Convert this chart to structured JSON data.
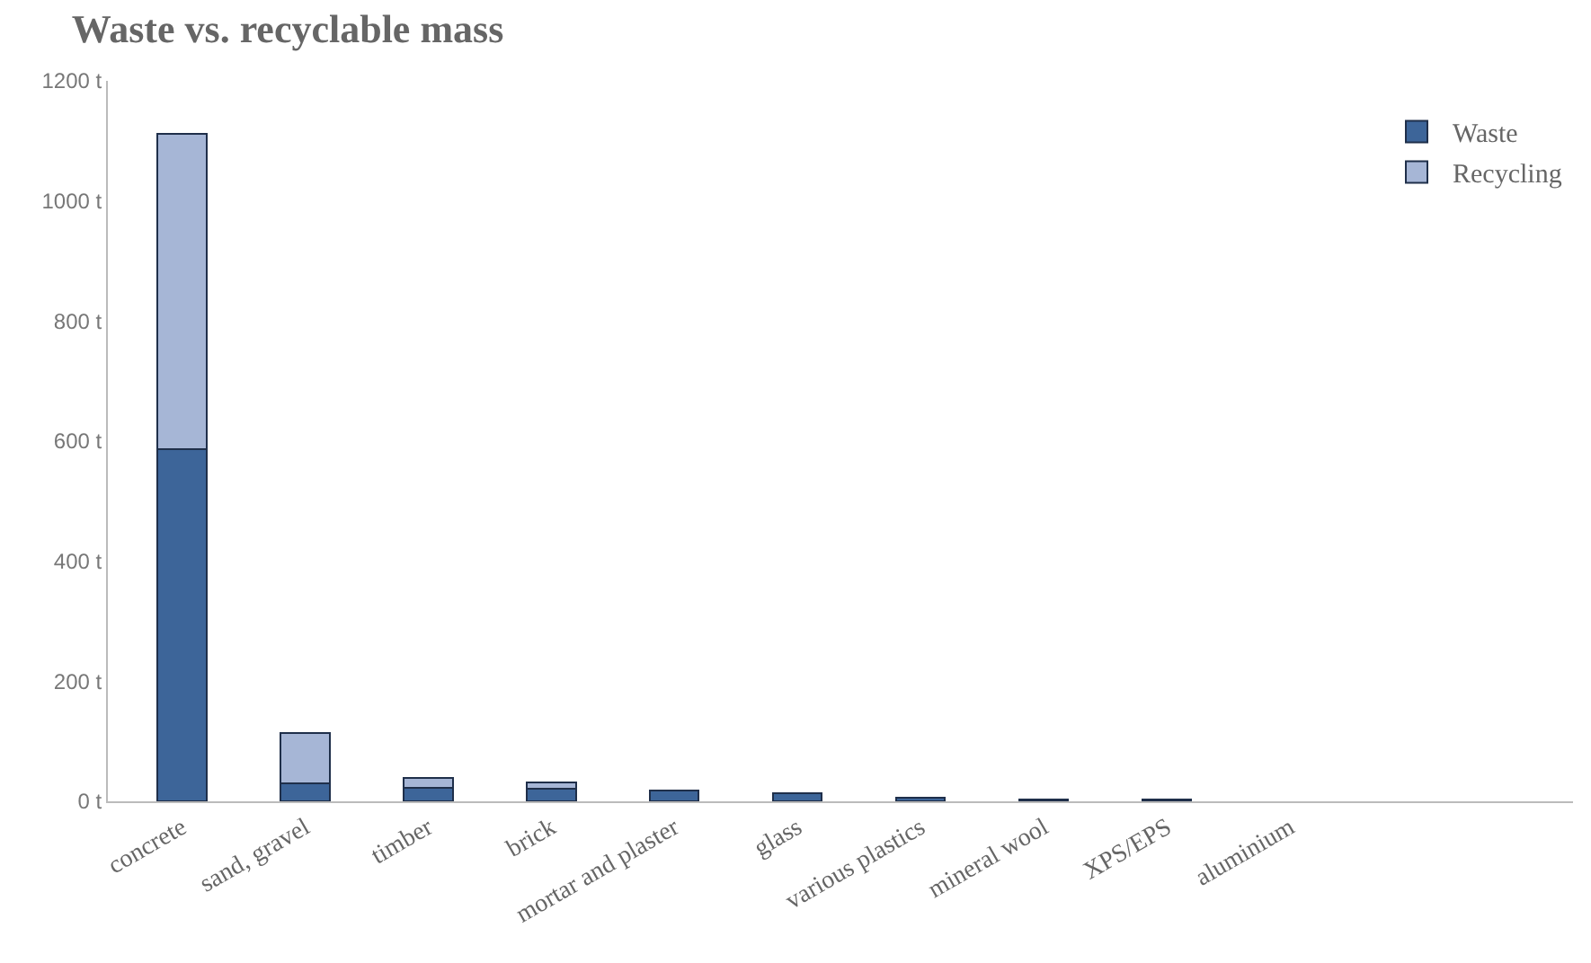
{
  "chart_data": {
    "type": "bar",
    "title": "Waste vs. recyclable mass",
    "stacked": true,
    "categories": [
      "concrete",
      "sand, gravel",
      "timber",
      "brick",
      "mortar and plaster",
      "glass",
      "various plastics",
      "mineral wool",
      "XPS/EPS",
      "aluminium"
    ],
    "series": [
      {
        "name": "Waste",
        "color": "#3d6599",
        "values": [
          587,
          30,
          23,
          21,
          18,
          13,
          6,
          3,
          3,
          0
        ]
      },
      {
        "name": "Recycling",
        "color": "#a6b6d6",
        "values": [
          524,
          83,
          16,
          11,
          0,
          0,
          0,
          0,
          0,
          0
        ]
      }
    ],
    "ylim": [
      0,
      1200
    ],
    "yticks": [
      {
        "value": 0,
        "label": "0 t"
      },
      {
        "value": 200,
        "label": "200 t"
      },
      {
        "value": 400,
        "label": "400 t"
      },
      {
        "value": 600,
        "label": "600 t"
      },
      {
        "value": 800,
        "label": "800 t"
      },
      {
        "value": 1000,
        "label": "1000 t"
      },
      {
        "value": 1200,
        "label": "1200 t"
      }
    ],
    "grid": false,
    "legend": "top right"
  }
}
